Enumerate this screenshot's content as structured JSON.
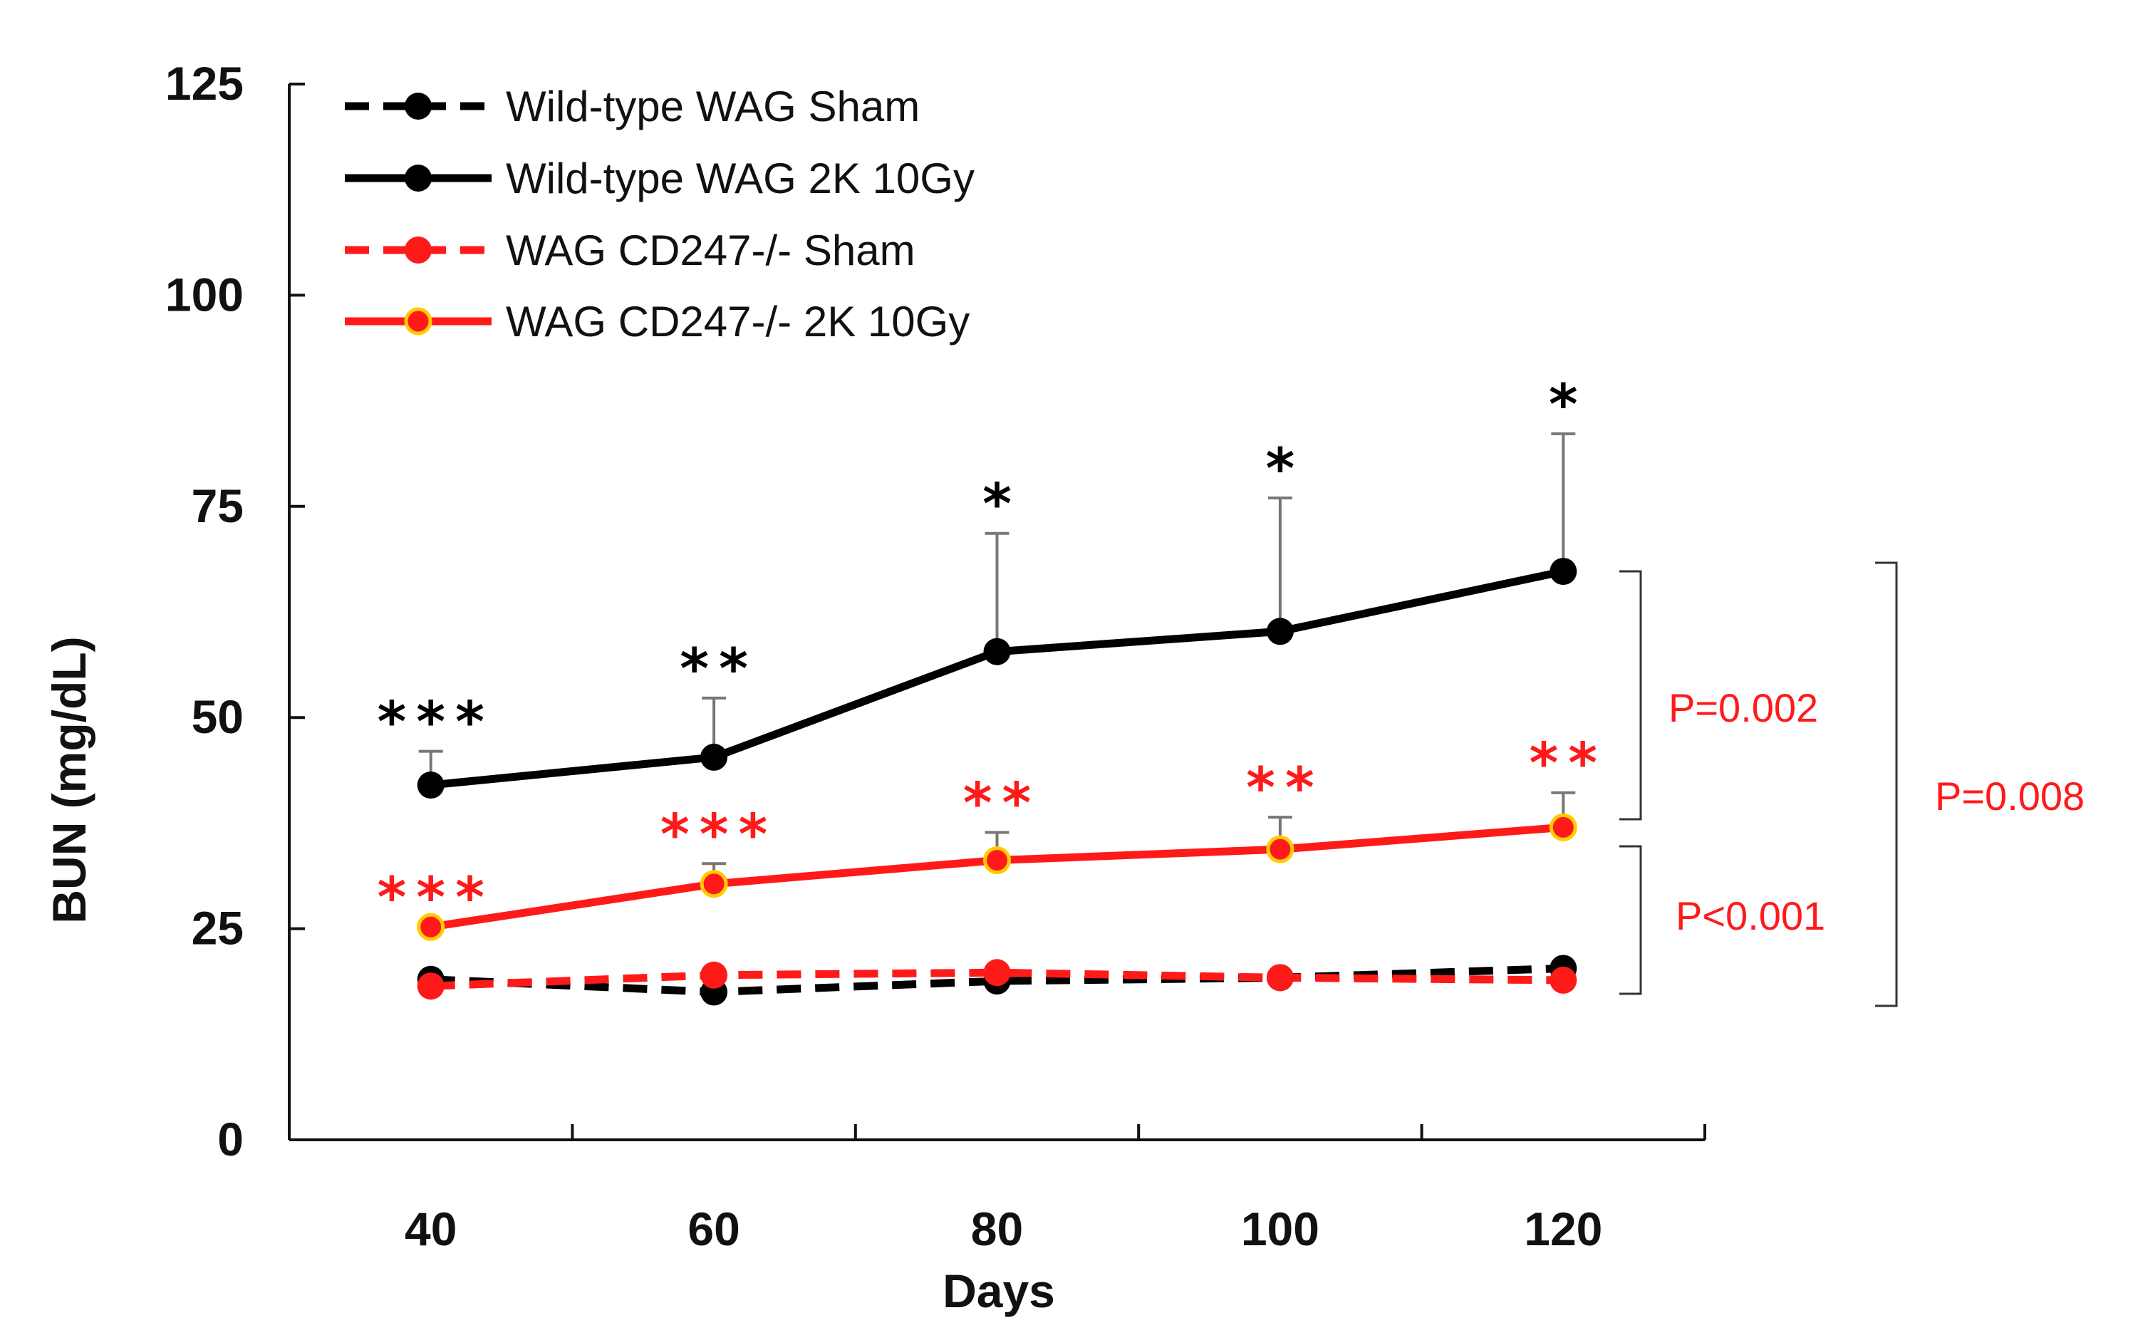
{
  "chart_data": {
    "type": "line",
    "title": "",
    "xlabel": "Days",
    "ylabel": "BUN (mg/dL)",
    "x": [
      40,
      60,
      80,
      100,
      120
    ],
    "xticks": [
      "40",
      "60",
      "80",
      "100",
      "120"
    ],
    "xlim": [
      30,
      130
    ],
    "xminor": [
      50,
      70,
      90,
      110
    ],
    "ylim": [
      0,
      125
    ],
    "yticks": [
      "0",
      "25",
      "50",
      "75",
      "100",
      "125"
    ],
    "grid": false,
    "legend_position": "top-left",
    "series": [
      {
        "name": "Wild-type WAG Sham",
        "values": [
          19.0,
          17.5,
          18.8,
          19.2,
          20.3
        ],
        "color": "#000000",
        "dash": "dashed",
        "marker": "filled",
        "err": []
      },
      {
        "name": "Wild-type WAG 2K 10Gy",
        "values": [
          42.0,
          45.3,
          57.8,
          60.2,
          67.3
        ],
        "color": "#000000",
        "dash": "solid",
        "marker": "filled",
        "err": [
          4.0,
          7.0,
          14.0,
          15.8,
          16.3
        ]
      },
      {
        "name": "WAG CD247-/- Sham",
        "values": [
          18.2,
          19.5,
          19.8,
          19.2,
          18.9
        ],
        "color": "#ff1a1a",
        "dash": "dashed",
        "marker": "filled",
        "err": []
      },
      {
        "name": "WAG CD247-/- 2K 10Gy",
        "values": [
          25.2,
          30.3,
          33.1,
          34.4,
          37.0
        ],
        "color": "#ff1a1a",
        "dash": "solid",
        "marker": "ringed",
        "err": [
          0.0,
          2.4,
          3.3,
          3.8,
          4.1
        ]
      }
    ],
    "annotations": {
      "black_stars": [
        "***",
        "**",
        "*",
        "*",
        "*"
      ],
      "red_stars": [
        "***",
        "***",
        "**",
        "**",
        "**"
      ],
      "pvalues": [
        "P=0.002",
        "P<0.001",
        "P=0.008"
      ]
    },
    "colors": {
      "black": "#000000",
      "red": "#ff1a1a",
      "marker_ring": "#ffcc00",
      "errorbar": "#777777",
      "axis": "#111111"
    }
  }
}
